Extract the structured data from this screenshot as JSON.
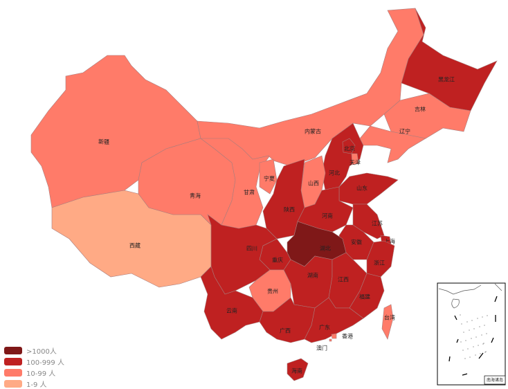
{
  "colors": {
    "gt1000": "#7f1818",
    "100_999": "#bf2121",
    "10_99": "#ff7b69",
    "1_9": "#ffaa85"
  },
  "legend": [
    {
      "label": ">1000人",
      "color": "#7f1818"
    },
    {
      "label": "100-999 人",
      "color": "#bf2121"
    },
    {
      "label": "10-99 人",
      "color": "#ff7b69"
    },
    {
      "label": "1-9 人",
      "color": "#ffaa85"
    }
  ],
  "provinces": [
    {
      "name": "新疆",
      "level": "10-99"
    },
    {
      "name": "西藏",
      "level": "1-9"
    },
    {
      "name": "青海",
      "level": "10-99"
    },
    {
      "name": "甘肃",
      "level": "10-99"
    },
    {
      "name": "内蒙古",
      "level": "10-99"
    },
    {
      "name": "黑龙江",
      "level": "100-999"
    },
    {
      "name": "吉林",
      "level": "10-99"
    },
    {
      "name": "辽宁",
      "level": "10-99"
    },
    {
      "name": "河北",
      "level": "100-999"
    },
    {
      "name": "北京",
      "level": "100-999"
    },
    {
      "name": "天津",
      "level": "10-99"
    },
    {
      "name": "山西",
      "level": "10-99"
    },
    {
      "name": "陕西",
      "level": "100-999"
    },
    {
      "name": "宁夏",
      "level": "10-99"
    },
    {
      "name": "山东",
      "level": "100-999"
    },
    {
      "name": "河南",
      "level": "100-999"
    },
    {
      "name": "江苏",
      "level": "100-999"
    },
    {
      "name": "安徽",
      "level": "100-999"
    },
    {
      "name": "上海",
      "level": "100-999"
    },
    {
      "name": "浙江",
      "level": "100-999"
    },
    {
      "name": "湖北",
      "level": ">1000"
    },
    {
      "name": "重庆",
      "level": "100-999"
    },
    {
      "name": "四川",
      "level": "100-999"
    },
    {
      "name": "贵州",
      "level": "10-99"
    },
    {
      "name": "云南",
      "level": "100-999"
    },
    {
      "name": "湖南",
      "level": "100-999"
    },
    {
      "name": "江西",
      "level": "100-999"
    },
    {
      "name": "福建",
      "level": "100-999"
    },
    {
      "name": "广西",
      "level": "100-999"
    },
    {
      "name": "广东",
      "level": "100-999"
    },
    {
      "name": "海南",
      "level": "100-999"
    },
    {
      "name": "台湾",
      "level": "10-99"
    },
    {
      "name": "香港",
      "level": "10-99"
    },
    {
      "name": "澳门",
      "level": "10-99"
    }
  ],
  "inset": {
    "label": "南海诸岛"
  }
}
